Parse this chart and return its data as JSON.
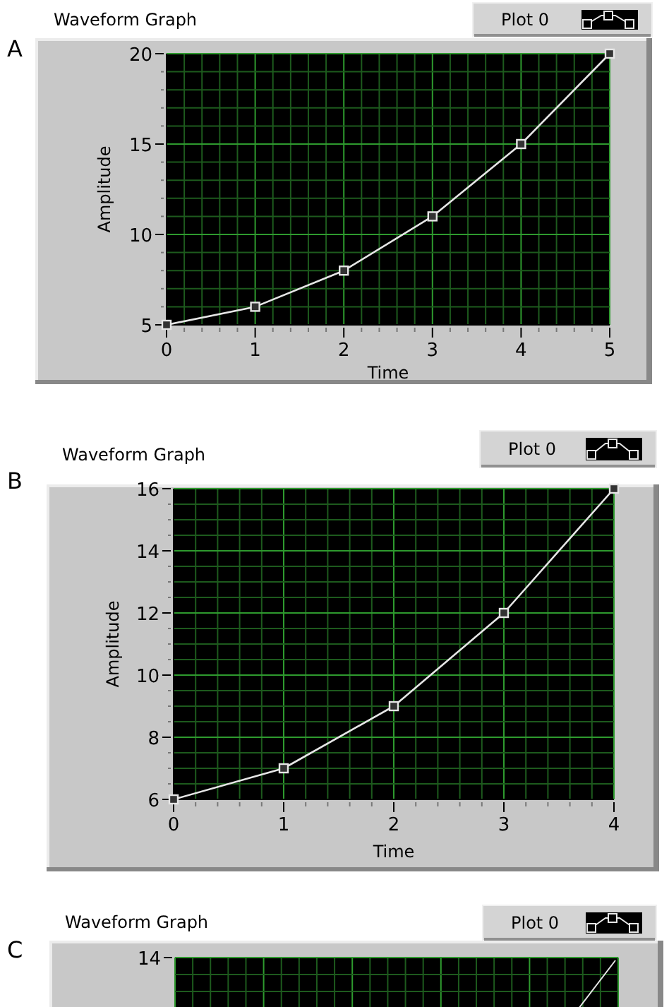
{
  "chart_data": [
    {
      "type": "line",
      "title": "Waveform Graph",
      "xlabel": "Time",
      "ylabel": "Amplitude",
      "annotations": [
        "A"
      ],
      "x": [
        0,
        1,
        2,
        3,
        4,
        5
      ],
      "series": [
        {
          "name": "Plot 0",
          "color": "#e6e6e6",
          "values": [
            5,
            6,
            8,
            11,
            15,
            20
          ]
        }
      ],
      "xlim": [
        0,
        5
      ],
      "xticks": [
        0,
        {
          "value": 0.2,
          "label": null
        },
        {
          "value": 0.4,
          "label": null
        },
        {
          "value": 0.6,
          "label": null
        },
        {
          "value": 0.8,
          "label": null
        },
        1,
        {
          "value": 1.2,
          "label": null
        },
        {
          "value": 1.4,
          "label": null
        },
        {
          "value": 1.6,
          "label": null
        },
        {
          "value": 1.8,
          "label": null
        },
        2,
        {
          "value": 2.2,
          "label": null
        },
        {
          "value": 2.4,
          "label": null
        },
        {
          "value": 2.6,
          "label": null
        },
        {
          "value": 2.8,
          "label": null
        },
        3,
        {
          "value": 3.2,
          "label": null
        },
        {
          "value": 3.4,
          "label": null
        },
        {
          "value": 3.6,
          "label": null
        },
        {
          "value": 3.8,
          "label": null
        },
        4,
        {
          "value": 4.2,
          "label": null
        },
        {
          "value": 4.4,
          "label": null
        },
        {
          "value": 4.6,
          "label": null
        },
        {
          "value": 4.8,
          "label": null
        },
        5
      ],
      "ylim": [
        5,
        20
      ],
      "yticks": [
        5,
        {
          "value": 6,
          "label": null
        },
        {
          "value": 7,
          "label": null
        },
        {
          "value": 8,
          "label": null
        },
        {
          "value": 9,
          "label": null
        },
        10,
        {
          "value": 11,
          "label": null
        },
        {
          "value": 12,
          "label": null
        },
        {
          "value": 13,
          "label": null
        },
        {
          "value": 14,
          "label": null
        },
        15,
        {
          "value": 16,
          "label": null
        },
        {
          "value": 17,
          "label": null
        },
        {
          "value": 18,
          "label": null
        },
        {
          "value": 19,
          "label": null
        },
        20
      ],
      "grid": true,
      "legend": "top right",
      "marker": "square",
      "line_style": "solid"
    },
    {
      "type": "line",
      "title": "Waveform Graph",
      "xlabel": "Time",
      "ylabel": "Amplitude",
      "annotations": [
        "B"
      ],
      "x": [
        0,
        1,
        2,
        3,
        4
      ],
      "series": [
        {
          "name": "Plot 0",
          "color": "#e6e6e6",
          "values": [
            6,
            7,
            9,
            12,
            16
          ]
        }
      ],
      "xlim": [
        0,
        4
      ],
      "xticks": [
        0,
        {
          "value": 0.2,
          "label": null
        },
        {
          "value": 0.4,
          "label": null
        },
        {
          "value": 0.6,
          "label": null
        },
        {
          "value": 0.8,
          "label": null
        },
        1,
        {
          "value": 1.2,
          "label": null
        },
        {
          "value": 1.4,
          "label": null
        },
        {
          "value": 1.6,
          "label": null
        },
        {
          "value": 1.8,
          "label": null
        },
        2,
        {
          "value": 2.2,
          "label": null
        },
        {
          "value": 2.4,
          "label": null
        },
        {
          "value": 2.6,
          "label": null
        },
        {
          "value": 2.8,
          "label": null
        },
        3,
        {
          "value": 3.2,
          "label": null
        },
        {
          "value": 3.4,
          "label": null
        },
        {
          "value": 3.6,
          "label": null
        },
        {
          "value": 3.8,
          "label": null
        },
        4
      ],
      "ylim": [
        6,
        16
      ],
      "yticks": [
        6,
        {
          "value": 6.5,
          "label": null
        },
        {
          "value": 7,
          "label": null
        },
        {
          "value": 7.5,
          "label": null
        },
        8,
        {
          "value": 8.5,
          "label": null
        },
        {
          "value": 9,
          "label": null
        },
        {
          "value": 9.5,
          "label": null
        },
        10,
        {
          "value": 10.5,
          "label": null
        },
        {
          "value": 11,
          "label": null
        },
        {
          "value": 11.5,
          "label": null
        },
        12,
        {
          "value": 12.5,
          "label": null
        },
        {
          "value": 13,
          "label": null
        },
        {
          "value": 13.5,
          "label": null
        },
        14,
        {
          "value": 14.5,
          "label": null
        },
        {
          "value": 15,
          "label": null
        },
        {
          "value": 15.5,
          "label": null
        },
        16
      ],
      "grid": true,
      "legend": "top right",
      "marker": "square",
      "line_style": "solid"
    },
    {
      "type": "other",
      "title": "Waveform Graph",
      "annotations": [
        "C",
        "Plot 0",
        "14"
      ]
    }
  ]
}
